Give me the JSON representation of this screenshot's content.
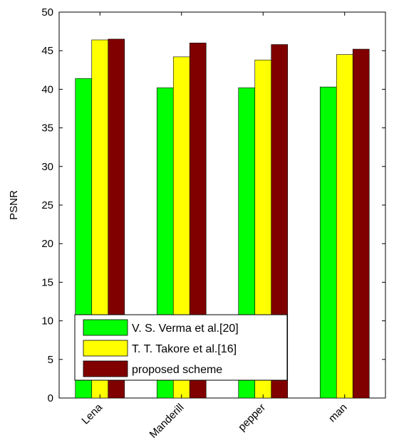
{
  "chart_data": {
    "type": "bar",
    "categories": [
      "Lena",
      "Manderill",
      "pepper",
      "man"
    ],
    "series": [
      {
        "name": "V. S. Verma et al.[20]",
        "values": [
          41.4,
          40.2,
          40.2,
          40.3
        ],
        "color": "#00ff00"
      },
      {
        "name": "T. T. Takore et al.[16]",
        "values": [
          46.4,
          44.2,
          43.8,
          44.5
        ],
        "color": "#ffff00"
      },
      {
        "name": "proposed scheme",
        "values": [
          46.5,
          46.0,
          45.8,
          45.2
        ],
        "color": "#800000"
      }
    ],
    "ylabel": "PSNR",
    "xlabel": "",
    "ylim": [
      0,
      50
    ],
    "yticks": [
      0,
      5,
      10,
      15,
      20,
      25,
      30,
      35,
      40,
      45,
      50
    ],
    "legend_position": "bottom-left",
    "grid": false
  }
}
